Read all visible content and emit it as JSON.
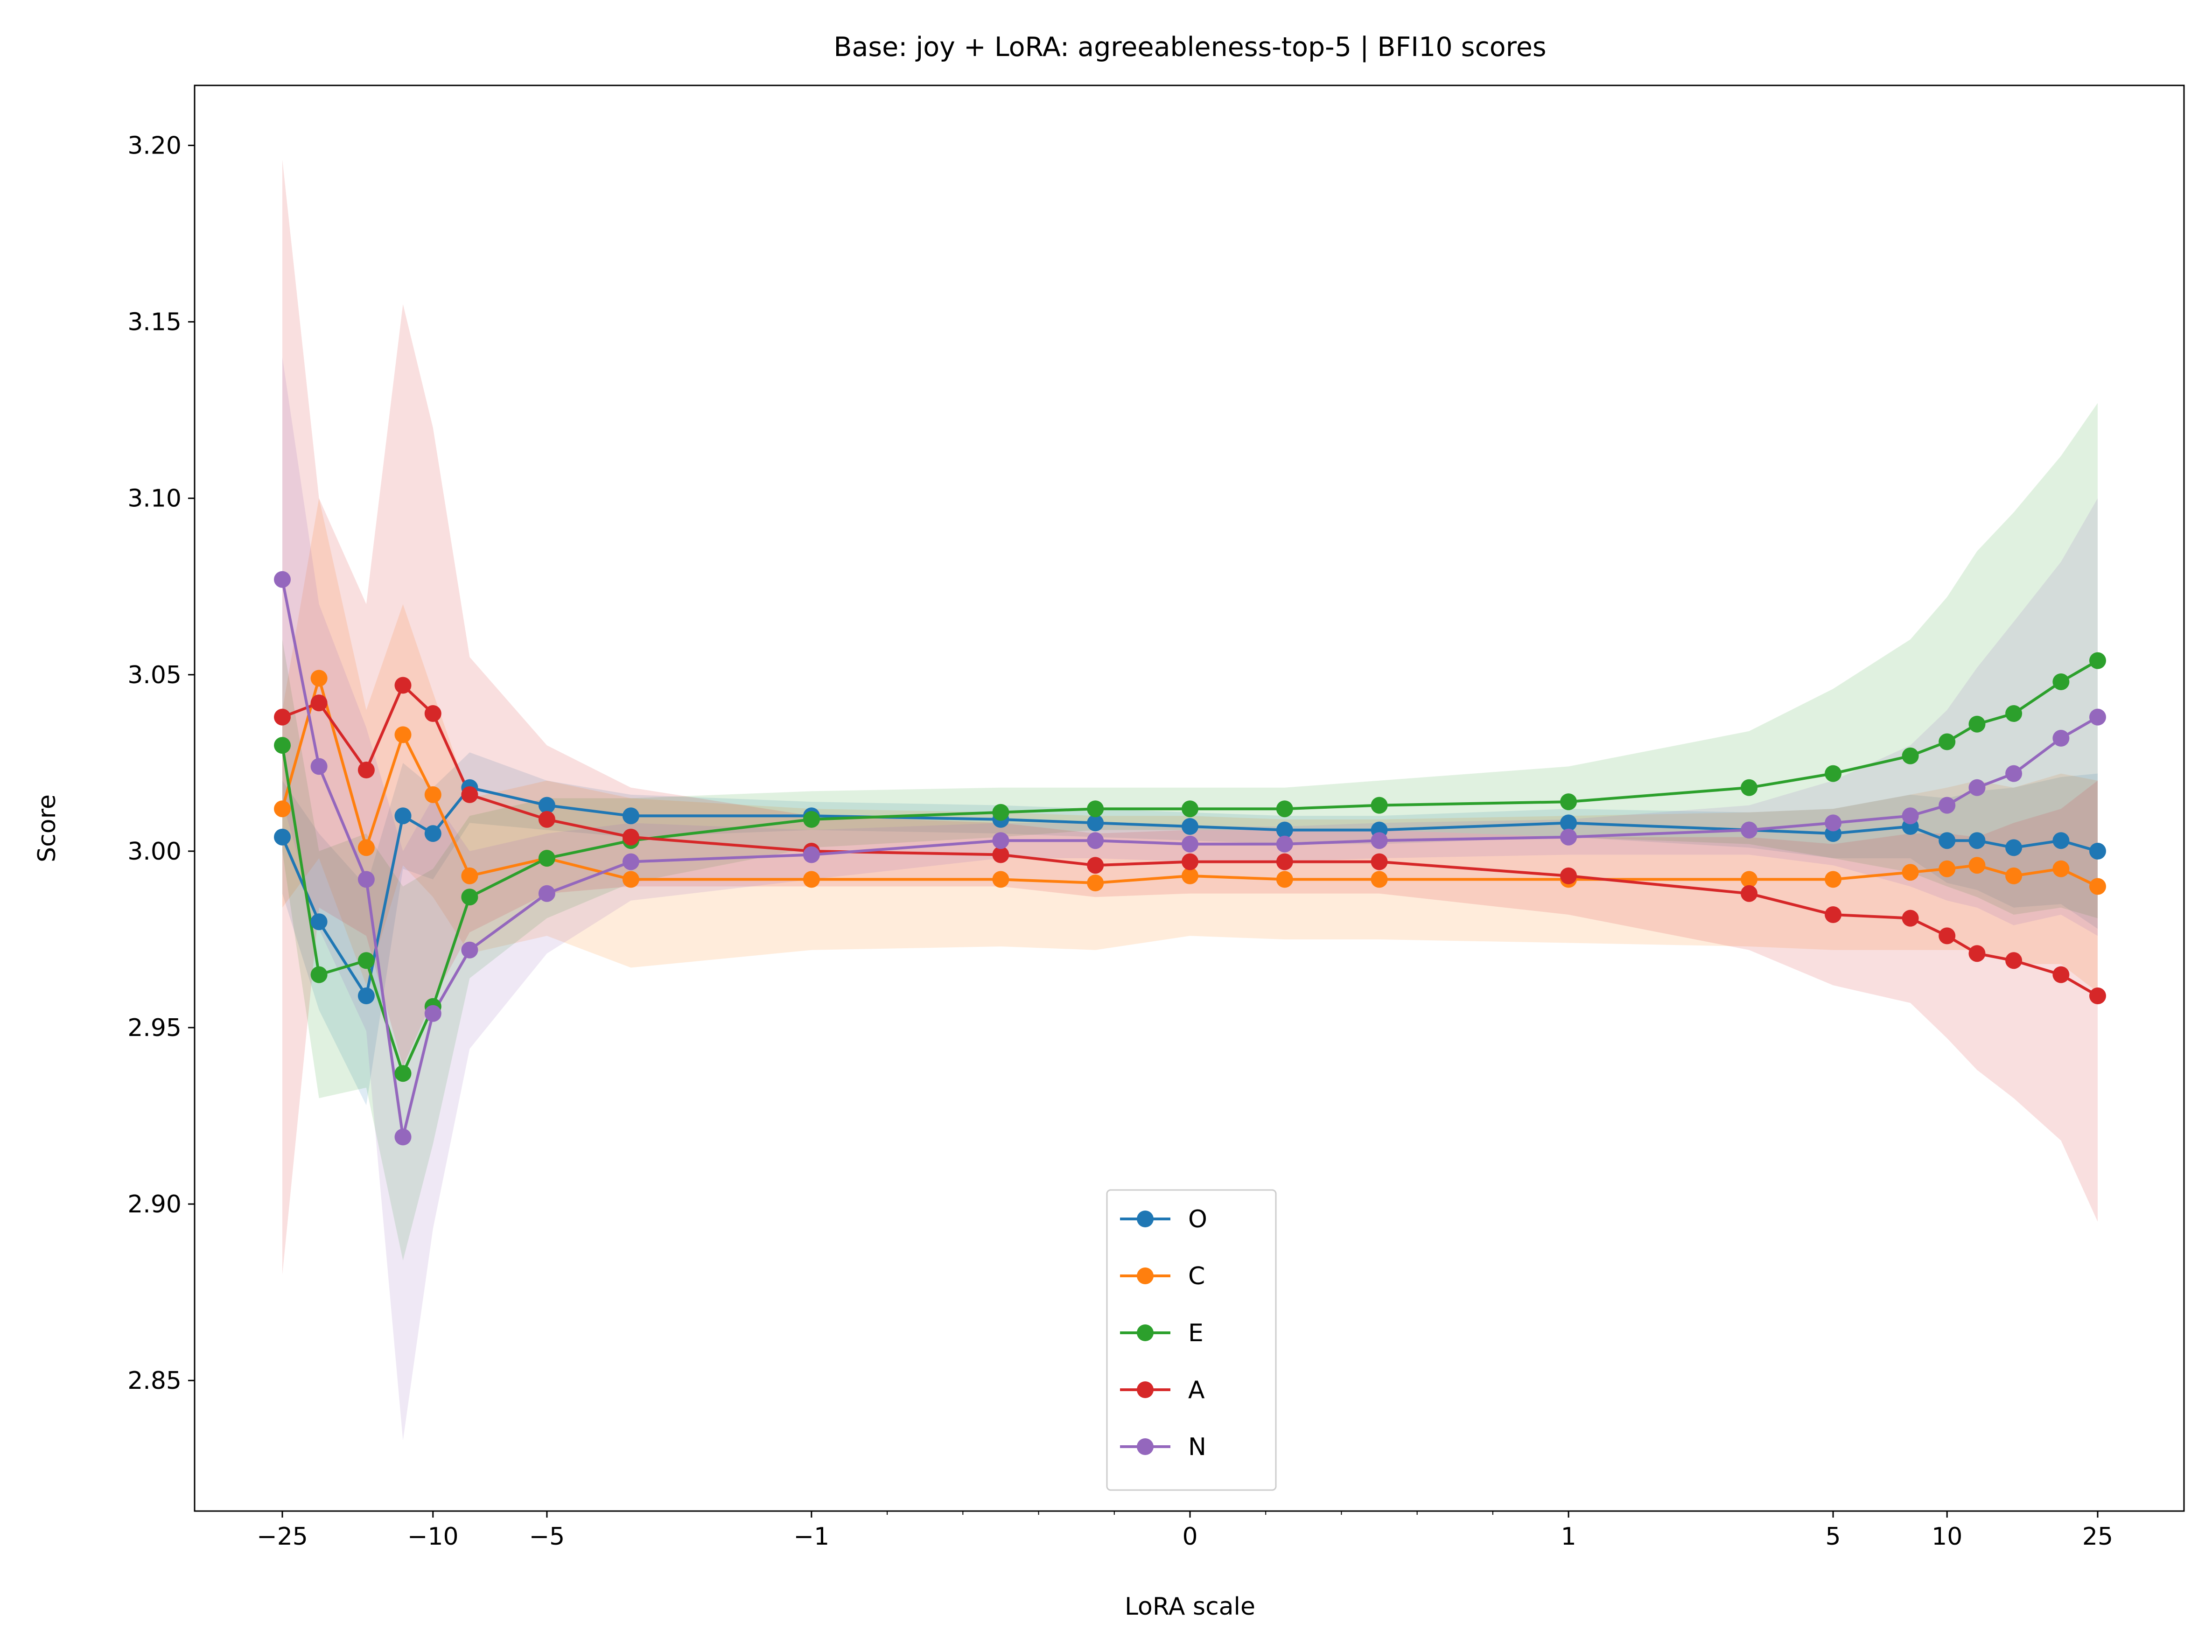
{
  "chart_data": {
    "type": "line",
    "title": "Base: joy + LoRA: agreeableness-top-5 | BFI10 scores",
    "xlabel": "LoRA scale",
    "ylabel": "Score",
    "xscale": "symlog",
    "ylim": [
      2.813,
      3.217
    ],
    "y_ticks": [
      "2.85",
      "2.90",
      "2.95",
      "3.00",
      "3.05",
      "3.10",
      "3.15",
      "3.20"
    ],
    "x_ticks": [
      "−25",
      "−10",
      "−5",
      "−1",
      "0",
      "1",
      "5",
      "10",
      "25"
    ],
    "grid": false,
    "legend_position": "lower center",
    "x": [
      -25,
      -20,
      -15,
      -12,
      -10,
      -8,
      -5,
      -3,
      -1,
      -0.5,
      -0.25,
      0,
      0.25,
      0.5,
      1,
      3,
      5,
      8,
      10,
      12,
      15,
      20,
      25
    ],
    "series": [
      {
        "name": "O",
        "color": "#1f77b4",
        "values": [
          3.004,
          2.98,
          2.959,
          3.01,
          3.005,
          3.018,
          3.013,
          3.01,
          3.01,
          3.009,
          3.008,
          3.007,
          3.006,
          3.006,
          3.008,
          3.006,
          3.005,
          3.007,
          3.003,
          3.003,
          3.001,
          3.003,
          3.0
        ],
        "upper": [
          3.02,
          3.005,
          2.99,
          3.025,
          3.018,
          3.028,
          3.02,
          3.016,
          3.014,
          3.013,
          3.012,
          3.011,
          3.01,
          3.01,
          3.012,
          3.011,
          3.012,
          3.016,
          3.015,
          3.017,
          3.018,
          3.021,
          3.022
        ],
        "lower": [
          2.988,
          2.955,
          2.928,
          2.995,
          2.992,
          3.008,
          3.006,
          3.004,
          3.006,
          3.005,
          3.004,
          3.003,
          3.002,
          3.002,
          3.004,
          3.001,
          2.998,
          2.998,
          2.991,
          2.989,
          2.984,
          2.985,
          2.978
        ]
      },
      {
        "name": "C",
        "color": "#ff7f0e",
        "values": [
          3.012,
          3.049,
          3.001,
          3.033,
          3.016,
          2.993,
          2.998,
          2.992,
          2.992,
          2.992,
          2.991,
          2.993,
          2.992,
          2.992,
          2.992,
          2.992,
          2.992,
          2.994,
          2.995,
          2.996,
          2.993,
          2.995,
          2.99
        ],
        "upper": [
          3.04,
          3.1,
          3.04,
          3.07,
          3.045,
          3.015,
          3.02,
          3.015,
          3.012,
          3.011,
          3.01,
          3.01,
          3.009,
          3.009,
          3.01,
          3.011,
          3.012,
          3.016,
          3.018,
          3.02,
          3.018,
          3.022,
          3.02
        ],
        "lower": [
          2.984,
          2.998,
          2.962,
          2.996,
          2.987,
          2.971,
          2.976,
          2.967,
          2.972,
          2.973,
          2.972,
          2.976,
          2.975,
          2.975,
          2.974,
          2.973,
          2.972,
          2.972,
          2.972,
          2.972,
          2.968,
          2.968,
          2.96
        ]
      },
      {
        "name": "E",
        "color": "#2ca02c",
        "values": [
          3.03,
          2.965,
          2.969,
          2.937,
          2.956,
          2.987,
          2.998,
          3.003,
          3.009,
          3.011,
          3.012,
          3.012,
          3.012,
          3.013,
          3.014,
          3.018,
          3.022,
          3.027,
          3.031,
          3.036,
          3.039,
          3.048,
          3.054
        ],
        "upper": [
          3.06,
          3.0,
          3.005,
          2.99,
          2.995,
          3.01,
          3.015,
          3.015,
          3.017,
          3.018,
          3.018,
          3.018,
          3.018,
          3.02,
          3.024,
          3.034,
          3.046,
          3.06,
          3.072,
          3.085,
          3.096,
          3.112,
          3.127
        ],
        "lower": [
          3.0,
          2.93,
          2.933,
          2.884,
          2.917,
          2.964,
          2.981,
          2.991,
          3.001,
          3.004,
          3.006,
          3.006,
          3.006,
          3.006,
          3.004,
          3.002,
          2.998,
          2.994,
          2.99,
          2.987,
          2.982,
          2.984,
          2.981
        ]
      },
      {
        "name": "A",
        "color": "#d62728",
        "values": [
          3.038,
          3.042,
          3.023,
          3.047,
          3.039,
          3.016,
          3.009,
          3.004,
          3.0,
          2.999,
          2.996,
          2.997,
          2.997,
          2.997,
          2.993,
          2.988,
          2.982,
          2.981,
          2.976,
          2.971,
          2.969,
          2.965,
          2.959
        ],
        "upper": [
          3.196,
          3.1,
          3.07,
          3.155,
          3.12,
          3.055,
          3.03,
          3.018,
          3.01,
          3.008,
          3.005,
          3.006,
          3.006,
          3.006,
          3.004,
          3.004,
          3.002,
          3.005,
          3.005,
          3.004,
          3.008,
          3.012,
          3.02
        ],
        "lower": [
          2.88,
          2.984,
          2.976,
          2.939,
          2.958,
          2.977,
          2.988,
          2.99,
          2.99,
          2.99,
          2.987,
          2.988,
          2.988,
          2.988,
          2.982,
          2.972,
          2.962,
          2.957,
          2.947,
          2.938,
          2.93,
          2.918,
          2.895
        ]
      },
      {
        "name": "N",
        "color": "#9467bd",
        "values": [
          3.077,
          3.024,
          2.992,
          2.919,
          2.954,
          2.972,
          2.988,
          2.997,
          2.999,
          3.003,
          3.003,
          3.002,
          3.002,
          3.003,
          3.004,
          3.006,
          3.008,
          3.01,
          3.013,
          3.018,
          3.022,
          3.032,
          3.038
        ],
        "upper": [
          3.14,
          3.07,
          3.035,
          3.0,
          3.015,
          3.0,
          3.005,
          3.008,
          3.006,
          3.008,
          3.008,
          3.007,
          3.007,
          3.008,
          3.009,
          3.013,
          3.02,
          3.03,
          3.04,
          3.052,
          3.065,
          3.082,
          3.1
        ],
        "lower": [
          3.014,
          2.978,
          2.949,
          2.833,
          2.893,
          2.944,
          2.971,
          2.986,
          2.992,
          2.998,
          2.998,
          2.997,
          2.997,
          2.998,
          2.999,
          2.999,
          2.996,
          2.99,
          2.986,
          2.984,
          2.979,
          2.982,
          2.976
        ]
      }
    ]
  }
}
